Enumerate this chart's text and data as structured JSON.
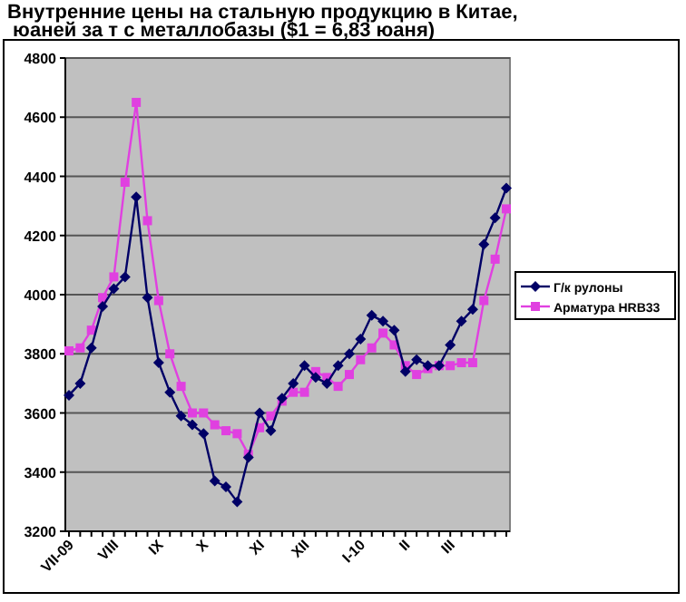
{
  "chart_data": {
    "type": "line",
    "title": "Внутренние цены на стальную продукцию в Китае,\n юаней за т с металлобазы ($1 = 6,83 юаня)",
    "categories": [
      "VII-09",
      null,
      null,
      null,
      "VIII",
      null,
      null,
      null,
      "IX",
      null,
      null,
      null,
      "X",
      null,
      null,
      null,
      null,
      "XI",
      null,
      null,
      null,
      "XII",
      null,
      null,
      null,
      null,
      "I-10",
      null,
      null,
      null,
      "II",
      null,
      null,
      null,
      "III",
      null,
      null,
      null,
      null,
      null
    ],
    "series": [
      {
        "name": "Г/к рулоны",
        "color": "#000066",
        "marker": "diamond",
        "values": [
          3660,
          3700,
          3820,
          3960,
          4020,
          4060,
          4330,
          3990,
          3770,
          3670,
          3590,
          3560,
          3530,
          3370,
          3350,
          3300,
          3450,
          3600,
          3540,
          3650,
          3700,
          3760,
          3720,
          3700,
          3760,
          3800,
          3850,
          3930,
          3910,
          3880,
          3740,
          3780,
          3760,
          3760,
          3830,
          3910,
          3950,
          4170,
          4260,
          4360
        ]
      },
      {
        "name": "Арматура HRB33",
        "color": "#e040e0",
        "marker": "square",
        "values": [
          3810,
          3820,
          3880,
          3990,
          4060,
          4380,
          4650,
          4250,
          3980,
          3800,
          3690,
          3600,
          3600,
          3560,
          3540,
          3530,
          3460,
          3550,
          3590,
          3640,
          3670,
          3670,
          3740,
          3720,
          3690,
          3730,
          3780,
          3820,
          3870,
          3830,
          3760,
          3730,
          3750,
          3760,
          3760,
          3770,
          3770,
          3980,
          4120,
          4290
        ]
      }
    ],
    "ylim": [
      3200,
      4800
    ],
    "yticks": [
      3200,
      3400,
      3600,
      3800,
      4000,
      4200,
      4400,
      4600,
      4800
    ],
    "grid": "y",
    "legend": "right"
  }
}
